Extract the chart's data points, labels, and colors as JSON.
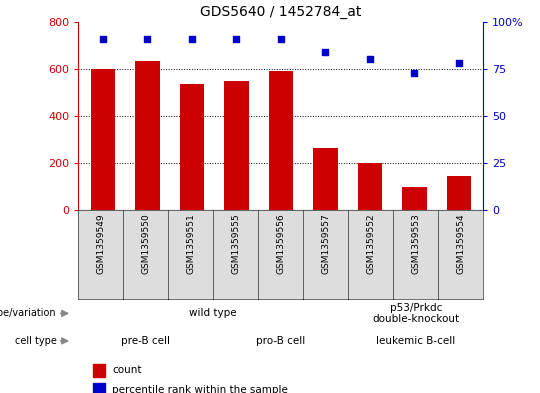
{
  "title": "GDS5640 / 1452784_at",
  "samples": [
    "GSM1359549",
    "GSM1359550",
    "GSM1359551",
    "GSM1359555",
    "GSM1359556",
    "GSM1359557",
    "GSM1359552",
    "GSM1359553",
    "GSM1359554"
  ],
  "counts": [
    600,
    635,
    535,
    550,
    590,
    265,
    200,
    100,
    145
  ],
  "percentile_ranks": [
    91,
    91,
    91,
    91,
    91,
    84,
    80,
    73,
    78
  ],
  "bar_color": "#cc0000",
  "dot_color": "#0000cc",
  "ylim_left": [
    0,
    800
  ],
  "ylim_right": [
    0,
    100
  ],
  "yticks_left": [
    0,
    200,
    400,
    600,
    800
  ],
  "yticks_right": [
    0,
    25,
    50,
    75,
    100
  ],
  "ytick_right_labels": [
    "0",
    "25",
    "50",
    "75",
    "100%"
  ],
  "genotype_groups": [
    {
      "label": "wild type",
      "start": 0,
      "end": 6,
      "color": "#aaeaaa"
    },
    {
      "label": "p53/Prkdc\ndouble-knockout",
      "start": 6,
      "end": 9,
      "color": "#55ee55"
    }
  ],
  "cell_type_groups": [
    {
      "label": "pre-B cell",
      "start": 0,
      "end": 3,
      "color": "#eaaaea"
    },
    {
      "label": "pro-B cell",
      "start": 3,
      "end": 6,
      "color": "#dd88dd"
    },
    {
      "label": "leukemic B-cell",
      "start": 6,
      "end": 9,
      "color": "#ee77ee"
    }
  ],
  "legend_count_label": "count",
  "legend_pct_label": "percentile rank within the sample",
  "genotype_label": "genotype/variation",
  "cell_type_label": "cell type",
  "sample_box_color": "#dddddd",
  "grid_lines": [
    200,
    400,
    600
  ]
}
